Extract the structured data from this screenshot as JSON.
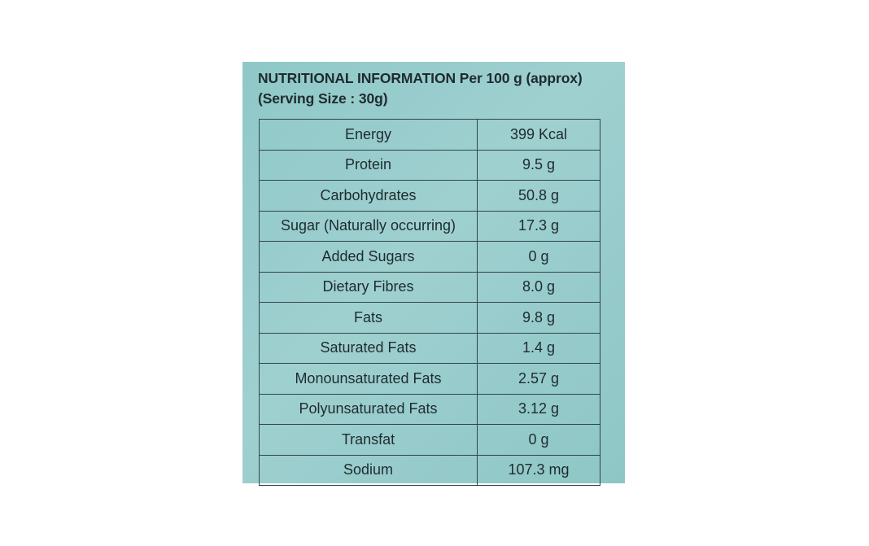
{
  "heading": {
    "line1": "NUTRITIONAL INFORMATION Per 100 g (approx)",
    "line2": "(Serving Size : 30g)"
  },
  "table": {
    "rows": [
      {
        "nutrient": "Energy",
        "value": "399 Kcal"
      },
      {
        "nutrient": "Protein",
        "value": "9.5 g"
      },
      {
        "nutrient": "Carbohydrates",
        "value": "50.8 g"
      },
      {
        "nutrient": "Sugar (Naturally occurring)",
        "value": "17.3 g"
      },
      {
        "nutrient": "Added Sugars",
        "value": "0 g"
      },
      {
        "nutrient": "Dietary Fibres",
        "value": "8.0 g"
      },
      {
        "nutrient": "Fats",
        "value": "9.8 g"
      },
      {
        "nutrient": "Saturated Fats",
        "value": "1.4 g"
      },
      {
        "nutrient": "Monounsaturated Fats",
        "value": "2.57 g"
      },
      {
        "nutrient": "Polyunsaturated Fats",
        "value": "3.12 g"
      },
      {
        "nutrient": "Transfat",
        "value": "0 g"
      },
      {
        "nutrient": "Sodium",
        "value": "107.3 mg"
      }
    ]
  },
  "colors": {
    "panel_background": "#9acccc",
    "text": "#1e2b2f",
    "border": "#2f4548"
  }
}
